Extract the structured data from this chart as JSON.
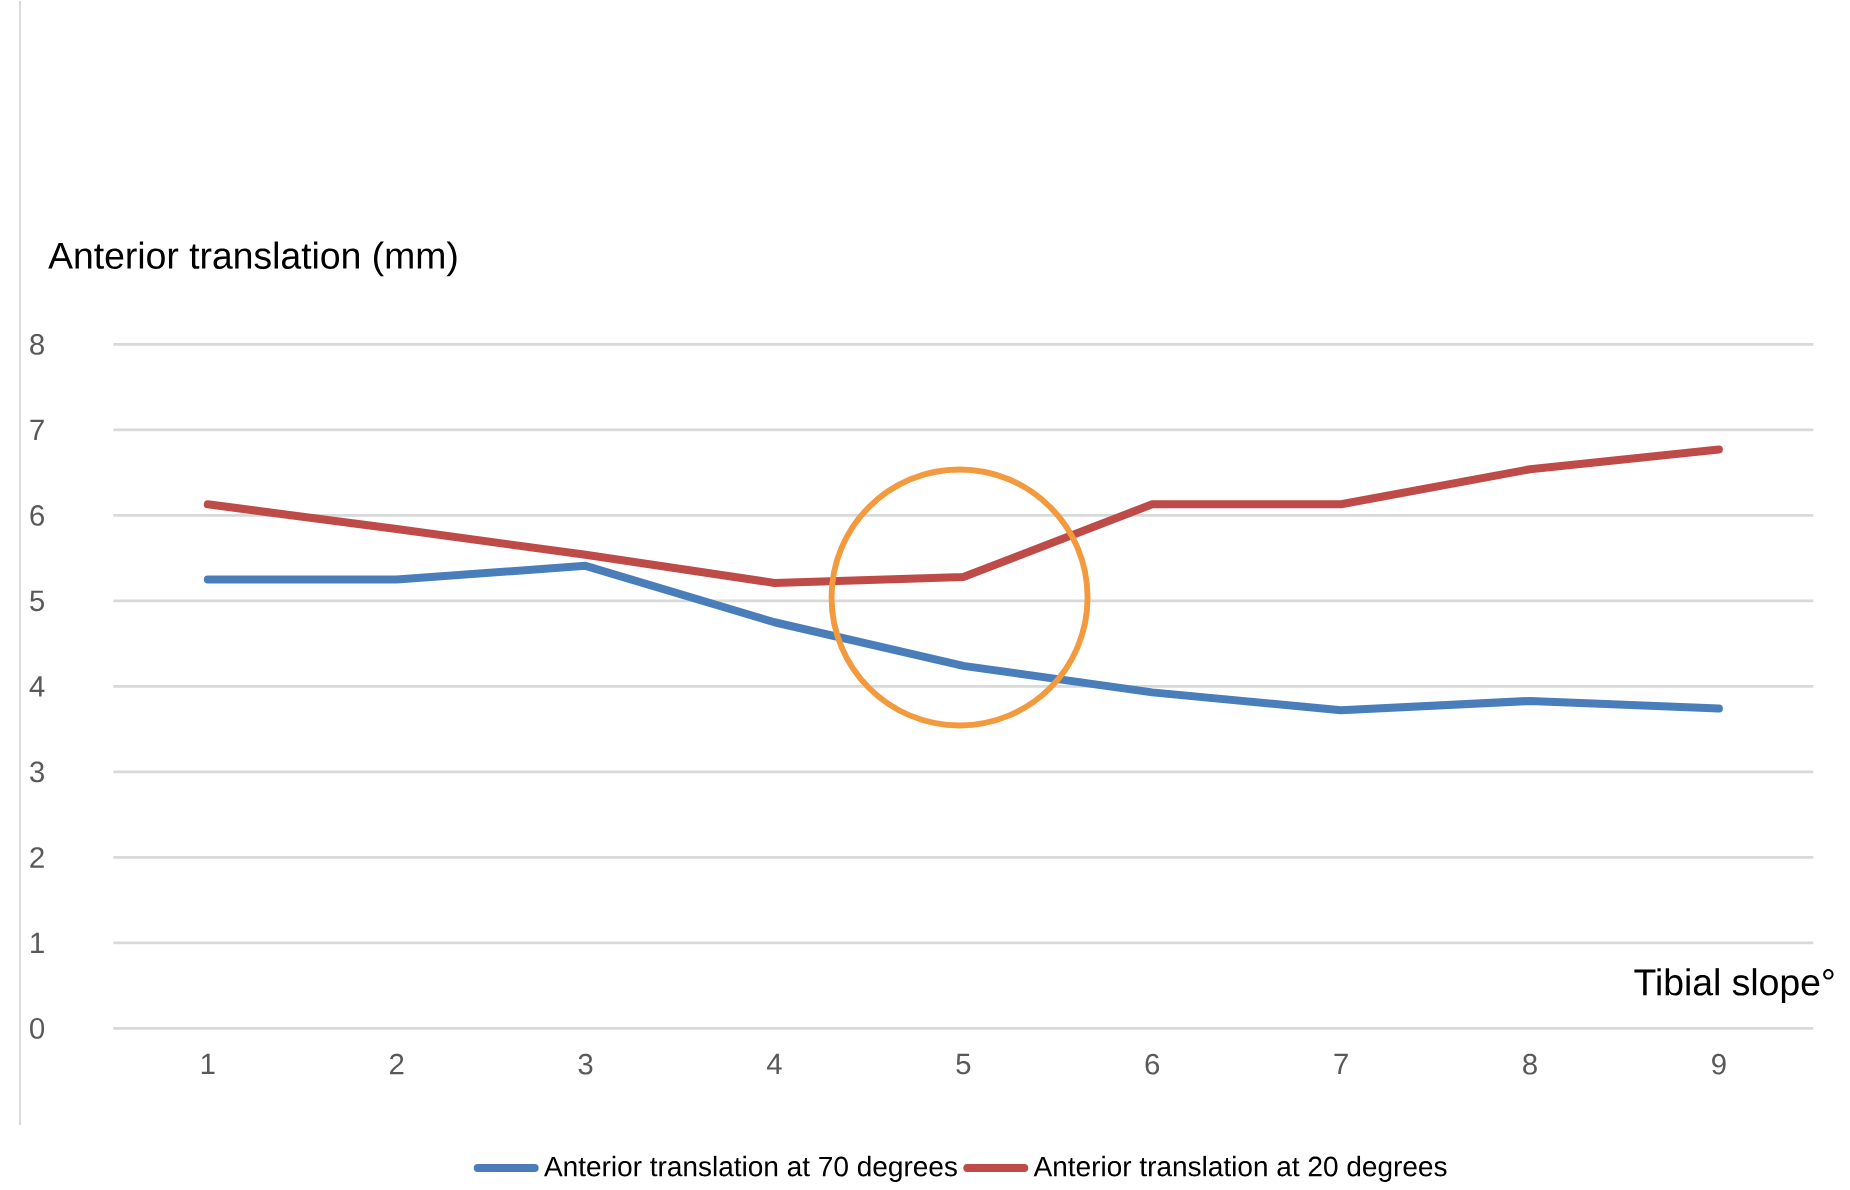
{
  "chart_data": {
    "type": "line",
    "xlabel": "Tibial slope°",
    "ylabel": "Anterior translation (mm)",
    "categories": [
      "1",
      "2",
      "3",
      "4",
      "5",
      "6",
      "7",
      "8",
      "9"
    ],
    "series": [
      {
        "name": "Anterior translation at 70 degrees",
        "color": "#4a7ebb",
        "values": [
          5.25,
          5.25,
          5.41,
          4.75,
          4.24,
          3.93,
          3.72,
          3.83,
          3.74
        ]
      },
      {
        "name": "Anterior translation at 20 degrees",
        "color": "#be4b48",
        "values": [
          6.13,
          5.84,
          5.54,
          5.21,
          5.28,
          6.13,
          6.13,
          6.54,
          6.77
        ]
      }
    ],
    "ylim": [
      0,
      8
    ],
    "yticks": [
      0,
      1,
      2,
      3,
      4,
      5,
      6,
      7,
      8
    ],
    "grid": "y",
    "legend": "bottom"
  }
}
